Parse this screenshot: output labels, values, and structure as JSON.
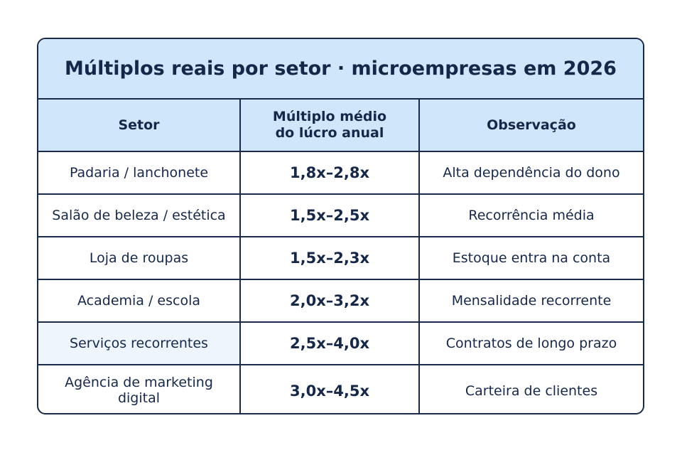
{
  "table": {
    "title": "Múltiplos reais por setor · microempresas em 2026",
    "header": [
      "Setor",
      "Múltiplo médio do lúcro anual",
      "Observação"
    ],
    "rows": [
      [
        "Padaria / lanchonete",
        "1,8x–2,8x",
        "Alta dependência do dono"
      ],
      [
        "Salão de beleza / estética",
        "1,5x–2,5x",
        "Recorrência média"
      ],
      [
        "Loja de roupas",
        "1,5x–2,3x",
        "Estoque entra na conta"
      ],
      [
        "Academia / escola",
        "2,0x–3,2x",
        "Mensalidade recorrente"
      ],
      [
        "Serviços recorrentes",
        "2,5x–4,0x",
        "Contratos de longo prazo"
      ],
      [
        "Agência de marketing digital",
        "3,0x–4,5x",
        "Carteira de clientes"
      ]
    ]
  }
}
